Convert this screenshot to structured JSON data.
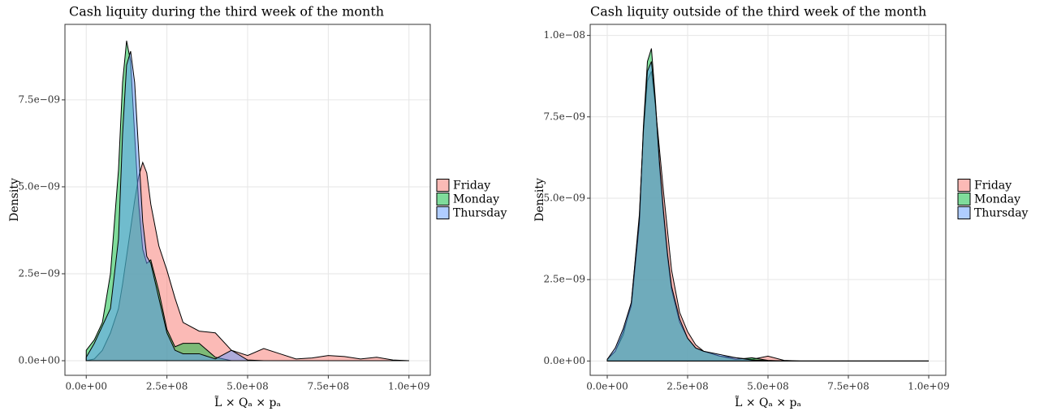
{
  "chart_data": [
    {
      "type": "area",
      "title": "Cash liquity during the third week of the month",
      "xlabel": "L̃ × Qₐ × pₐ",
      "ylabel": "Density",
      "x": [
        0,
        25000000.0,
        50000000.0,
        75000000.0,
        100000000.0,
        112500000.0,
        125000000.0,
        137500000.0,
        150000000.0,
        162500000.0,
        175000000.0,
        187500000.0,
        200000000.0,
        225000000.0,
        250000000.0,
        275000000.0,
        300000000.0,
        350000000.0,
        400000000.0,
        450000000.0,
        500000000.0,
        550000000.0,
        600000000.0,
        650000000.0,
        700000000.0,
        750000000.0,
        800000000.0,
        850000000.0,
        900000000.0,
        950000000.0,
        1000000000.0
      ],
      "series": [
        {
          "name": "Friday",
          "color": "#F8766D",
          "values": [
            0,
            5e-11,
            3e-10,
            8e-10,
            1.5e-09,
            2.2e-09,
            3e-09,
            3.8e-09,
            4.6e-09,
            5.3e-09,
            5.7e-09,
            5.4e-09,
            4.5e-09,
            3.3e-09,
            2.6e-09,
            1.8e-09,
            1.1e-09,
            8.5e-10,
            8e-10,
            3e-10,
            1.5e-10,
            3.5e-10,
            2e-10,
            5e-11,
            8e-11,
            1.5e-10,
            1.2e-10,
            5e-11,
            1e-10,
            2e-11,
            0
          ]
        },
        {
          "name": "Monday",
          "color": "#00BA38",
          "values": [
            3e-10,
            6e-10,
            1.1e-09,
            2.5e-09,
            5.5e-09,
            8e-09,
            9.2e-09,
            8.6e-09,
            6.5e-09,
            4.5e-09,
            3.2e-09,
            2.8e-09,
            2.9e-09,
            2e-09,
            9e-10,
            4e-10,
            5e-10,
            5e-10,
            1e-10,
            0,
            0,
            0,
            0,
            0,
            0,
            0,
            0,
            0,
            0,
            0,
            0
          ]
        },
        {
          "name": "Thursday",
          "color": "#619CFF",
          "values": [
            1e-10,
            5e-10,
            1e-09,
            1.5e-09,
            3.5e-09,
            6.5e-09,
            8.5e-09,
            8.9e-09,
            8e-09,
            6e-09,
            4e-09,
            3e-09,
            2.8e-09,
            1.8e-09,
            8e-10,
            3e-10,
            2e-10,
            2e-10,
            5e-11,
            3e-10,
            2e-11,
            0,
            0,
            0,
            0,
            0,
            0,
            0,
            0,
            0,
            0
          ]
        }
      ],
      "xlim": [
        -66000000.0,
        1066000000.0
      ],
      "xticks": [
        {
          "value": 0,
          "label": "0.0e+00"
        },
        {
          "value": 250000000.0,
          "label": "2.5e+08"
        },
        {
          "value": 500000000.0,
          "label": "5.0e+08"
        },
        {
          "value": 750000000.0,
          "label": "7.5e+08"
        },
        {
          "value": 1000000000.0,
          "label": "1.0e+09"
        }
      ],
      "ylim": [
        -4.2e-10,
        9.67e-09
      ],
      "yticks": [
        {
          "value": 0,
          "label": "0.0e+00"
        },
        {
          "value": 2.5e-09,
          "label": "2.5e−09"
        },
        {
          "value": 5e-09,
          "label": "5.0e−09"
        },
        {
          "value": 7.5e-09,
          "label": "7.5e−09"
        }
      ],
      "grid": true,
      "legend": "right"
    },
    {
      "type": "area",
      "title": "Cash liquity outside of the third week of the month",
      "xlabel": "L̃ × Qₐ × pₐ",
      "ylabel": "Density",
      "x": [
        0,
        25000000.0,
        50000000.0,
        75000000.0,
        100000000.0,
        112500000.0,
        125000000.0,
        137500000.0,
        150000000.0,
        162500000.0,
        175000000.0,
        187500000.0,
        200000000.0,
        225000000.0,
        250000000.0,
        275000000.0,
        300000000.0,
        350000000.0,
        400000000.0,
        450000000.0,
        500000000.0,
        550000000.0,
        600000000.0,
        650000000.0,
        700000000.0,
        750000000.0,
        800000000.0,
        850000000.0,
        900000000.0,
        950000000.0,
        1000000000.0
      ],
      "series": [
        {
          "name": "Friday",
          "color": "#F8766D",
          "values": [
            5e-11,
            3e-10,
            8e-10,
            1.8e-09,
            4.5e-09,
            7e-09,
            8.6e-09,
            8.9e-09,
            7.8e-09,
            6.5e-09,
            5.2e-09,
            4e-09,
            2.8e-09,
            1.5e-09,
            9e-10,
            5e-10,
            3e-10,
            1.5e-10,
            1e-10,
            5e-11,
            1.5e-10,
            2e-11,
            0,
            0,
            0,
            0,
            0,
            0,
            0,
            0,
            0
          ]
        },
        {
          "name": "Monday",
          "color": "#00BA38",
          "values": [
            5e-11,
            3e-10,
            9e-10,
            1.7e-09,
            4.2e-09,
            7.2e-09,
            9.2e-09,
            9.6e-09,
            8e-09,
            6e-09,
            4.5e-09,
            3.2e-09,
            2.2e-09,
            1.2e-09,
            7e-10,
            4e-10,
            3e-10,
            1.5e-10,
            5e-11,
            1e-10,
            2e-11,
            0,
            0,
            0,
            0,
            0,
            0,
            0,
            0,
            0,
            0
          ]
        },
        {
          "name": "Thursday",
          "color": "#619CFF",
          "values": [
            5e-11,
            4e-10,
            1e-09,
            1.8e-09,
            4.4e-09,
            7.1e-09,
            8.9e-09,
            9.2e-09,
            7.9e-09,
            6.1e-09,
            4.6e-09,
            3.3e-09,
            2.3e-09,
            1.3e-09,
            7e-10,
            4e-10,
            3e-10,
            2e-10,
            1e-10,
            3e-11,
            1e-11,
            0,
            0,
            0,
            0,
            0,
            0,
            0,
            0,
            0,
            0
          ]
        }
      ],
      "xlim": [
        -53000000.0,
        1053000000.0
      ],
      "xticks": [
        {
          "value": 0,
          "label": "0.0e+00"
        },
        {
          "value": 250000000.0,
          "label": "2.5e+08"
        },
        {
          "value": 500000000.0,
          "label": "5.0e+08"
        },
        {
          "value": 750000000.0,
          "label": "7.5e+08"
        },
        {
          "value": 1000000000.0,
          "label": "1.0e+09"
        }
      ],
      "ylim": [
        -4.4e-10,
        1.034e-08
      ],
      "yticks": [
        {
          "value": 0,
          "label": "0.0e+00"
        },
        {
          "value": 2.5e-09,
          "label": "2.5e−09"
        },
        {
          "value": 5e-09,
          "label": "5.0e−09"
        },
        {
          "value": 7.5e-09,
          "label": "7.5e−09"
        },
        {
          "value": 1e-08,
          "label": "1.0e−08"
        }
      ],
      "grid": true,
      "legend": "right"
    }
  ]
}
